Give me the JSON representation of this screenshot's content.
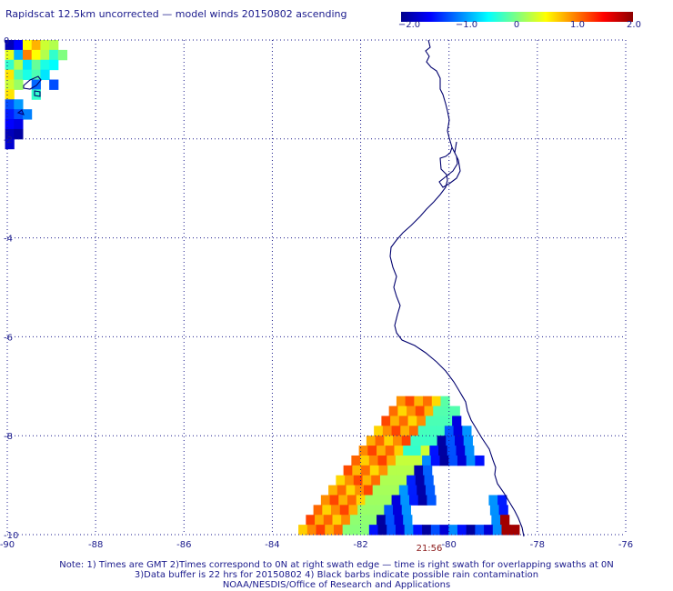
{
  "title": "Rapidscat 12.5km uncorrected — model winds 20150802 ascending",
  "colorbar": {
    "labels": [
      "−2.0",
      "−1.0",
      "0",
      "1.0",
      "2.0"
    ],
    "range": [
      -2.0,
      2.0
    ],
    "stops": [
      "#00008b",
      "#0000ff",
      "#0080ff",
      "#00ffff",
      "#80ff80",
      "#ffff00",
      "#ff8000",
      "#ff0000",
      "#8b0000"
    ]
  },
  "map": {
    "x_labels": [
      "-90",
      "-88",
      "-86",
      "-84",
      "-82",
      "-80",
      "-78",
      "-76"
    ],
    "y_labels": [
      "0",
      "-2",
      "-4",
      "-6",
      "-8",
      "-10"
    ],
    "lon_range": [
      -90,
      -76
    ],
    "lat_range": [
      -10,
      0
    ],
    "grid": true,
    "coastline_color": "#00006e",
    "swath_time": "21:56"
  },
  "notes": [
    "Note: 1) Times are GMT 2)Times correspond to 0N at right swath edge — time is right swath for overlapping swaths at 0N",
    "3)Data buffer is 22 hrs for 20150802 4) Black barbs indicate possible rain contamination",
    "NOAA/NESDIS/Office of Research and Applications"
  ],
  "chart_data": {
    "type": "heatmap",
    "title": "Rapidscat 12.5km uncorrected — model winds 20150802 ascending",
    "xlabel": "",
    "ylabel": "",
    "xlim": [
      -90,
      -76
    ],
    "ylim": [
      -10,
      0
    ],
    "value_range": [
      -2.0,
      2.0
    ],
    "regions": [
      {
        "description_lon": [
          -90,
          -88.7
        ],
        "description_lat": [
          -2.2,
          0
        ],
        "dominant_values": [
          -1.5,
          0.5
        ]
      },
      {
        "description_lon": [
          -83.4,
          -78.3
        ],
        "description_lat": [
          -10,
          -7.2
        ],
        "dominant_values": [
          -2.0,
          1.8
        ]
      }
    ],
    "cells": [
      [
        -89.95,
        -0.1,
        -1.8
      ],
      [
        -89.75,
        -0.1,
        -1.5
      ],
      [
        -89.55,
        -0.1,
        0.5
      ],
      [
        -89.35,
        -0.1,
        0.8
      ],
      [
        -89.15,
        -0.1,
        0.3
      ],
      [
        -88.95,
        -0.1,
        0.2
      ],
      [
        -89.95,
        -0.3,
        0.4
      ],
      [
        -89.75,
        -0.3,
        -0.8
      ],
      [
        -89.55,
        -0.3,
        1.0
      ],
      [
        -89.35,
        -0.3,
        0.5
      ],
      [
        -89.15,
        -0.3,
        0.2
      ],
      [
        -88.95,
        -0.3,
        -0.3
      ],
      [
        -88.75,
        -0.3,
        0.0
      ],
      [
        -89.95,
        -0.5,
        -0.3
      ],
      [
        -89.75,
        -0.5,
        0.2
      ],
      [
        -89.55,
        -0.5,
        -0.6
      ],
      [
        -89.35,
        -0.5,
        -0.1
      ],
      [
        -89.15,
        -0.5,
        -0.4
      ],
      [
        -88.95,
        -0.5,
        -0.5
      ],
      [
        -89.95,
        -0.7,
        0.6
      ],
      [
        -89.75,
        -0.7,
        -0.2
      ],
      [
        -89.55,
        -0.7,
        -0.4
      ],
      [
        -89.35,
        -0.7,
        -0.2
      ],
      [
        -89.15,
        -0.7,
        -0.6
      ],
      [
        -89.95,
        -0.9,
        0.3
      ],
      [
        -89.75,
        -0.9,
        0.1
      ],
      [
        -89.35,
        -0.9,
        -1.1
      ],
      [
        -88.95,
        -0.9,
        -1.2
      ],
      [
        -89.95,
        -1.1,
        0.6
      ],
      [
        -89.35,
        -1.1,
        -0.3
      ],
      [
        -89.95,
        -1.3,
        -1.2
      ],
      [
        -89.75,
        -1.3,
        -0.9
      ],
      [
        -89.95,
        -1.5,
        -1.4
      ],
      [
        -89.75,
        -1.5,
        -1.2
      ],
      [
        -89.55,
        -1.5,
        -1.0
      ],
      [
        -89.95,
        -1.7,
        -1.5
      ],
      [
        -89.75,
        -1.7,
        -1.6
      ],
      [
        -89.95,
        -1.9,
        -1.8
      ],
      [
        -89.75,
        -1.9,
        -1.9
      ],
      [
        -89.95,
        -2.1,
        -1.7
      ]
    ]
  }
}
